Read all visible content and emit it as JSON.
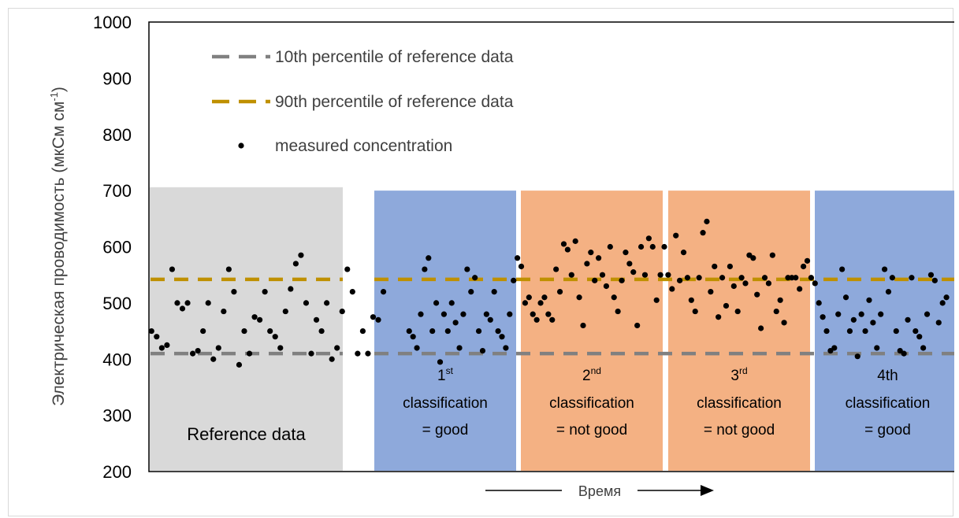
{
  "chart_data": {
    "type": "scatter",
    "xlabel": "Время",
    "ylabel": "Электрическая проводимость (мкСм см",
    "ylabel_superscript": "-1",
    "ylabel_close": ")",
    "ylim": [
      200,
      1000
    ],
    "yticks": [
      "200",
      "300",
      "400",
      "500",
      "600",
      "700",
      "800",
      "900",
      "1000"
    ],
    "grid": false,
    "legend_position": "top-left",
    "legend": [
      {
        "label": "10th percentile of reference data",
        "style": "dashed-line",
        "color": "#808080"
      },
      {
        "label": "90th percentile of reference data",
        "style": "dashed-line",
        "color": "#BF9000"
      },
      {
        "label": "measured concentration",
        "style": "marker",
        "color": "#000000"
      }
    ],
    "thresholds": {
      "p10": 410,
      "p90": 542
    },
    "regions": [
      {
        "color": "#D9D9D9",
        "lines": [
          {
            "text": "Reference data"
          }
        ]
      },
      {
        "color": "#8EA9DB",
        "lines": [
          {
            "text": "1",
            "sup": "st"
          },
          {
            "text": "classification"
          },
          {
            "text": "= good"
          }
        ]
      },
      {
        "color": "#F4B183",
        "lines": [
          {
            "text": "2",
            "sup": "nd"
          },
          {
            "text": "classification"
          },
          {
            "text": "= not good"
          }
        ]
      },
      {
        "color": "#F4B183",
        "lines": [
          {
            "text": "3",
            "sup": "rd"
          },
          {
            "text": "classification"
          },
          {
            "text": "= not good"
          }
        ]
      },
      {
        "color": "#8EA9DB",
        "lines": [
          {
            "text": "4th"
          },
          {
            "text": "classification"
          },
          {
            "text": "= good"
          }
        ]
      }
    ],
    "series": [
      {
        "points": [
          [
            1,
            450
          ],
          [
            3,
            440
          ],
          [
            5,
            420
          ],
          [
            7,
            425
          ],
          [
            9,
            560
          ],
          [
            11,
            500
          ],
          [
            13,
            490
          ],
          [
            15,
            500
          ],
          [
            17,
            410
          ],
          [
            19,
            415
          ],
          [
            21,
            450
          ],
          [
            23,
            500
          ],
          [
            25,
            400
          ],
          [
            27,
            420
          ],
          [
            29,
            485
          ],
          [
            31,
            560
          ],
          [
            33,
            520
          ],
          [
            35,
            390
          ],
          [
            37,
            450
          ],
          [
            39,
            410
          ],
          [
            41,
            475
          ],
          [
            43,
            470
          ],
          [
            45,
            520
          ],
          [
            47,
            450
          ],
          [
            49,
            440
          ],
          [
            51,
            420
          ],
          [
            53,
            485
          ],
          [
            55,
            525
          ],
          [
            57,
            570
          ],
          [
            59,
            585
          ],
          [
            61,
            500
          ],
          [
            63,
            410
          ],
          [
            65,
            470
          ],
          [
            67,
            450
          ],
          [
            69,
            500
          ],
          [
            71,
            400
          ],
          [
            73,
            420
          ],
          [
            75,
            485
          ],
          [
            77,
            560
          ],
          [
            79,
            520
          ],
          [
            81,
            410
          ],
          [
            83,
            450
          ],
          [
            85,
            410
          ],
          [
            87,
            475
          ],
          [
            89,
            470
          ],
          [
            91,
            520
          ]
        ]
      },
      {
        "points": [
          [
            101,
            450
          ],
          [
            102.5,
            440
          ],
          [
            104,
            420
          ],
          [
            105.5,
            480
          ],
          [
            107,
            560
          ],
          [
            108.5,
            580
          ],
          [
            110,
            450
          ],
          [
            111.5,
            500
          ],
          [
            113,
            395
          ],
          [
            114.5,
            480
          ],
          [
            116,
            450
          ],
          [
            117.5,
            500
          ],
          [
            119,
            465
          ],
          [
            120.5,
            420
          ],
          [
            122,
            480
          ],
          [
            123.5,
            560
          ],
          [
            125,
            520
          ],
          [
            126.5,
            545
          ],
          [
            128,
            450
          ],
          [
            129.5,
            415
          ],
          [
            131,
            480
          ],
          [
            132.5,
            470
          ],
          [
            134,
            520
          ],
          [
            135.5,
            450
          ],
          [
            137,
            440
          ],
          [
            138.5,
            420
          ],
          [
            140,
            480
          ],
          [
            141.5,
            540
          ],
          [
            143,
            580
          ],
          [
            144.5,
            565
          ],
          [
            146,
            500
          ],
          [
            147.5,
            510
          ],
          [
            149,
            480
          ],
          [
            150.5,
            470
          ],
          [
            152,
            500
          ],
          [
            153.5,
            510
          ],
          [
            155,
            480
          ],
          [
            156.5,
            470
          ],
          [
            158,
            560
          ],
          [
            159.5,
            520
          ],
          [
            161,
            605
          ],
          [
            162.5,
            595
          ],
          [
            164,
            550
          ],
          [
            165.5,
            610
          ],
          [
            167,
            510
          ],
          [
            168.5,
            460
          ],
          [
            170,
            570
          ],
          [
            171.5,
            590
          ],
          [
            173,
            540
          ],
          [
            174.5,
            580
          ],
          [
            176,
            550
          ],
          [
            177.5,
            530
          ],
          [
            179,
            600
          ],
          [
            180.5,
            510
          ],
          [
            182,
            485
          ],
          [
            183.5,
            540
          ],
          [
            185,
            590
          ],
          [
            186.5,
            570
          ],
          [
            188,
            555
          ],
          [
            189.5,
            460
          ],
          [
            191,
            600
          ],
          [
            192.5,
            550
          ],
          [
            194,
            615
          ],
          [
            195.5,
            600
          ],
          [
            197,
            505
          ],
          [
            198.5,
            550
          ],
          [
            200,
            600
          ],
          [
            201.5,
            550
          ],
          [
            203,
            525
          ],
          [
            204.5,
            620
          ],
          [
            206,
            540
          ],
          [
            207.5,
            590
          ],
          [
            209,
            545
          ],
          [
            210.5,
            505
          ],
          [
            212,
            485
          ],
          [
            213.5,
            545
          ],
          [
            215,
            625
          ],
          [
            216.5,
            645
          ],
          [
            218,
            520
          ],
          [
            219.5,
            565
          ],
          [
            221,
            475
          ],
          [
            222.5,
            545
          ],
          [
            224,
            495
          ],
          [
            225.5,
            565
          ],
          [
            227,
            530
          ],
          [
            228.5,
            485
          ],
          [
            230,
            545
          ],
          [
            231.5,
            535
          ],
          [
            233,
            585
          ],
          [
            234.5,
            580
          ],
          [
            236,
            515
          ],
          [
            237.5,
            455
          ],
          [
            239,
            545
          ],
          [
            240.5,
            535
          ],
          [
            242,
            585
          ],
          [
            243.5,
            485
          ],
          [
            245,
            505
          ],
          [
            246.5,
            465
          ],
          [
            248,
            545
          ],
          [
            249.5,
            545
          ],
          [
            251,
            545
          ],
          [
            252.5,
            525
          ],
          [
            254,
            565
          ],
          [
            255.5,
            575
          ],
          [
            257,
            545
          ],
          [
            258.5,
            535
          ],
          [
            260,
            500
          ],
          [
            261.5,
            475
          ],
          [
            263,
            450
          ],
          [
            264.5,
            415
          ],
          [
            266,
            420
          ],
          [
            267.5,
            480
          ],
          [
            269,
            560
          ],
          [
            270.5,
            510
          ],
          [
            272,
            450
          ],
          [
            273.5,
            470
          ],
          [
            275,
            405
          ],
          [
            276.5,
            480
          ],
          [
            278,
            450
          ],
          [
            279.5,
            505
          ],
          [
            281,
            465
          ],
          [
            282.5,
            420
          ],
          [
            284,
            480
          ],
          [
            285.5,
            560
          ],
          [
            287,
            520
          ],
          [
            288.5,
            545
          ],
          [
            290,
            450
          ],
          [
            291.5,
            415
          ],
          [
            293,
            410
          ],
          [
            294.5,
            470
          ],
          [
            296,
            545
          ],
          [
            297.5,
            450
          ],
          [
            299,
            440
          ],
          [
            300.5,
            420
          ],
          [
            302,
            480
          ],
          [
            303.5,
            550
          ],
          [
            305,
            540
          ],
          [
            306.5,
            465
          ],
          [
            308,
            500
          ],
          [
            309.5,
            510
          ]
        ]
      }
    ]
  }
}
